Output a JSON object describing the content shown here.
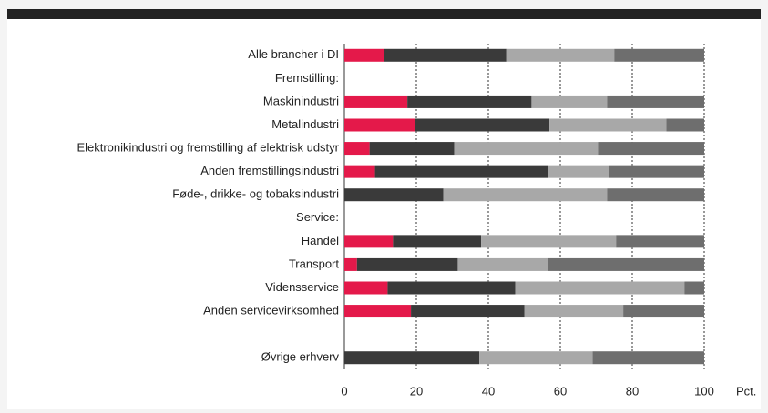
{
  "chart_data": {
    "type": "stacked_bar_horizontal",
    "categories": [
      "Alle brancher i DI",
      "Fremstilling:",
      "Maskinindustri",
      "Metalindustri",
      "Elektronikindustri og fremstilling af elektrisk udstyr",
      "Anden fremstillingsindustri",
      "Føde-, drikke- og tobaksindustri",
      "Service:",
      "Handel",
      "Transport",
      "Vidensservice",
      "Anden servicevirksomhed",
      null,
      "Øvrige erhverv"
    ],
    "series": [
      {
        "color": "#e4194a",
        "values": [
          11,
          null,
          17.5,
          19.5,
          7,
          8.5,
          0,
          null,
          13.5,
          3.5,
          12,
          18.5,
          null,
          0
        ]
      },
      {
        "color": "#3a3a3a",
        "values": [
          34,
          null,
          34.5,
          37.5,
          23.5,
          48,
          27.5,
          null,
          24.5,
          28,
          35.5,
          31.5,
          null,
          37.5
        ]
      },
      {
        "color": "#a8a8a8",
        "values": [
          30,
          null,
          21,
          32.5,
          40,
          17,
          45.5,
          null,
          37.5,
          25,
          47,
          27.5,
          null,
          31.5
        ]
      },
      {
        "color": "#6e6e6e",
        "values": [
          25,
          null,
          27,
          10.5,
          29.5,
          26.5,
          27,
          null,
          24.5,
          43.5,
          5.5,
          22.5,
          null,
          31
        ]
      }
    ],
    "xlim": [
      0,
      100
    ],
    "xticks": [
      0,
      20,
      40,
      60,
      80,
      100
    ],
    "x_label": "Pct.",
    "grid": true
  }
}
